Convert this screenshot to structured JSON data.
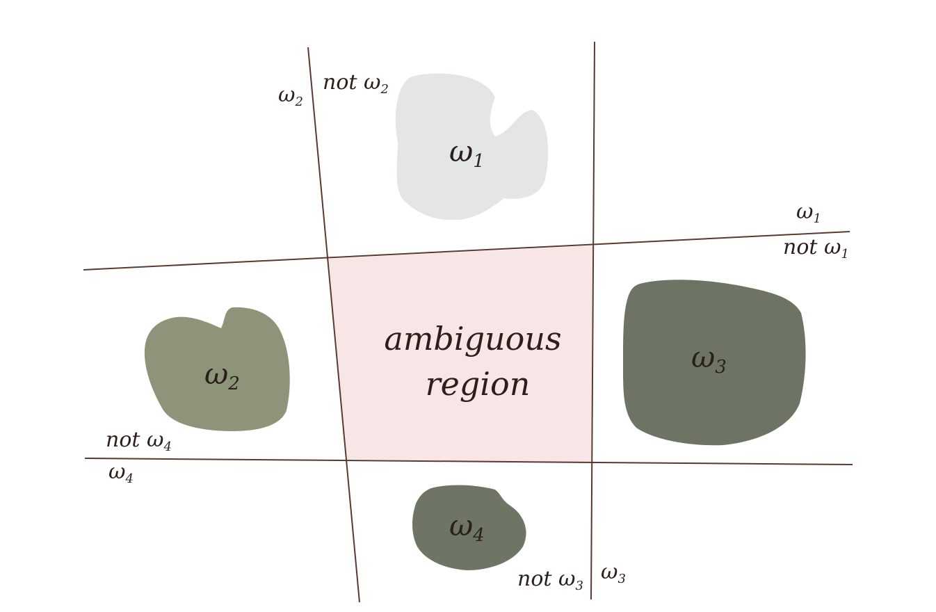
{
  "colors": {
    "line": "#5a3a30",
    "ambiguous_fill": "#f8e6e6",
    "class1_fill": "#e4e6e6",
    "class2_fill": "#8e9479",
    "class3_fill": "#6e7463",
    "class4_fill": "#6f7564",
    "text": "#2a1f1a"
  },
  "regions": {
    "ambiguous": {
      "line1": "ambiguous",
      "line2": "region"
    }
  },
  "classes": [
    {
      "id": "w1",
      "label": "ω",
      "sub": "1"
    },
    {
      "id": "w2",
      "label": "ω",
      "sub": "2"
    },
    {
      "id": "w3",
      "label": "ω",
      "sub": "3"
    },
    {
      "id": "w4",
      "label": "ω",
      "sub": "4"
    }
  ],
  "boundary_labels": {
    "b2_positive": {
      "text": "ω",
      "sub": "2"
    },
    "b2_negative": {
      "text": "not ω",
      "sub": "2"
    },
    "b1_positive": {
      "text": "ω",
      "sub": "1"
    },
    "b1_negative": {
      "text": "not ω",
      "sub": "1"
    },
    "b4_negative": {
      "text": "not ω",
      "sub": "4"
    },
    "b4_positive": {
      "text": "ω",
      "sub": "4"
    },
    "b3_negative": {
      "text": "not ω",
      "sub": "3"
    },
    "b3_positive": {
      "text": "ω",
      "sub": "3"
    }
  }
}
